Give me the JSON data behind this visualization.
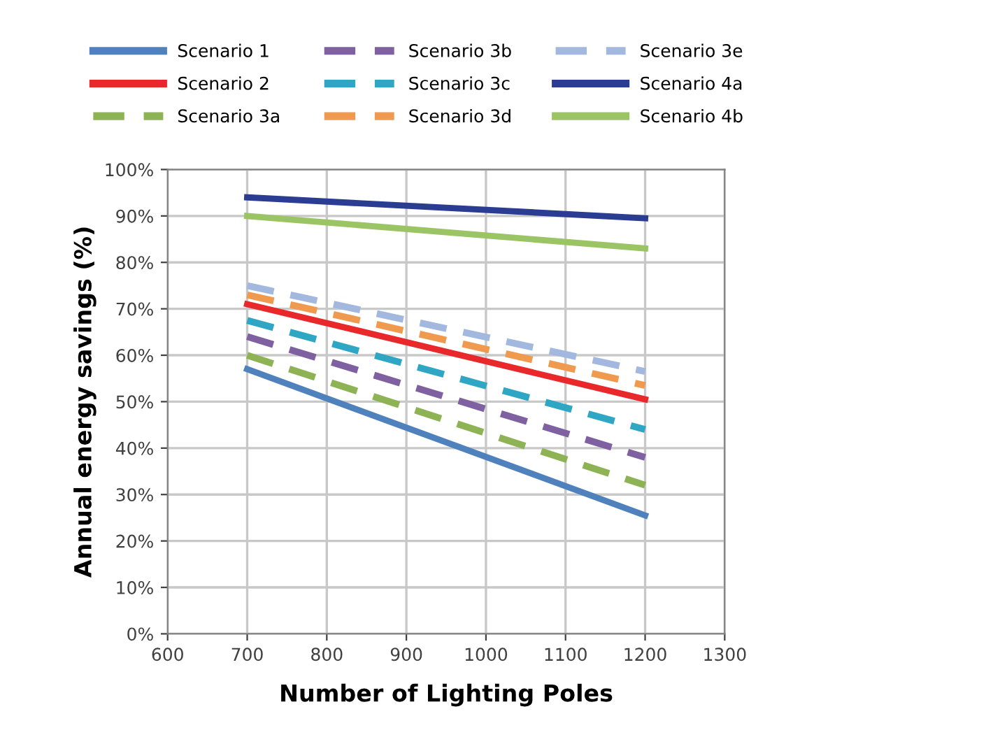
{
  "chart_data": {
    "type": "line",
    "xlabel": "Number of Lighting Poles",
    "ylabel": "Annual energy savings (%)",
    "x": [
      700,
      1200
    ],
    "xlim": [
      600,
      1300
    ],
    "xticks": [
      600,
      700,
      800,
      900,
      1000,
      1100,
      1200,
      1300
    ],
    "ylim": [
      0,
      100
    ],
    "yticks": [
      {
        "value": 0,
        "label": "0%"
      },
      {
        "value": 10,
        "label": "10%"
      },
      {
        "value": 20,
        "label": "20%"
      },
      {
        "value": 30,
        "label": "30%"
      },
      {
        "value": 40,
        "label": "40%"
      },
      {
        "value": 50,
        "label": "50%"
      },
      {
        "value": 60,
        "label": "60%"
      },
      {
        "value": 70,
        "label": "70%"
      },
      {
        "value": 80,
        "label": "80%"
      },
      {
        "value": 90,
        "label": "90%"
      },
      {
        "value": 100,
        "label": "100%"
      }
    ],
    "grid": true,
    "legend": "top",
    "marker": "none",
    "series": [
      {
        "name": "Scenario 1",
        "color": "#4f81bd",
        "values": [
          57,
          25.5
        ],
        "line_style": "solid"
      },
      {
        "name": "Scenario 2",
        "color": "#e8282b",
        "values": [
          71,
          50.5
        ],
        "line_style": "solid"
      },
      {
        "name": "Scenario 3a",
        "color": "#8db354",
        "values": [
          60,
          32
        ],
        "line_style": "dashed"
      },
      {
        "name": "Scenario 3b",
        "color": "#7f60a0",
        "values": [
          64,
          38
        ],
        "line_style": "dashed"
      },
      {
        "name": "Scenario 3c",
        "color": "#2fa7c4",
        "values": [
          67.5,
          44
        ],
        "line_style": "dashed"
      },
      {
        "name": "Scenario 3d",
        "color": "#ef9a4e",
        "values": [
          73,
          53.5
        ],
        "line_style": "dashed"
      },
      {
        "name": "Scenario 3e",
        "color": "#a3b8df",
        "values": [
          75,
          56.5
        ],
        "line_style": "dashed"
      },
      {
        "name": "Scenario 4a",
        "color": "#2b3d93",
        "values": [
          94,
          89.5
        ],
        "line_style": "solid"
      },
      {
        "name": "Scenario 4b",
        "color": "#9bc465",
        "values": [
          90,
          83
        ],
        "line_style": "solid"
      }
    ]
  }
}
